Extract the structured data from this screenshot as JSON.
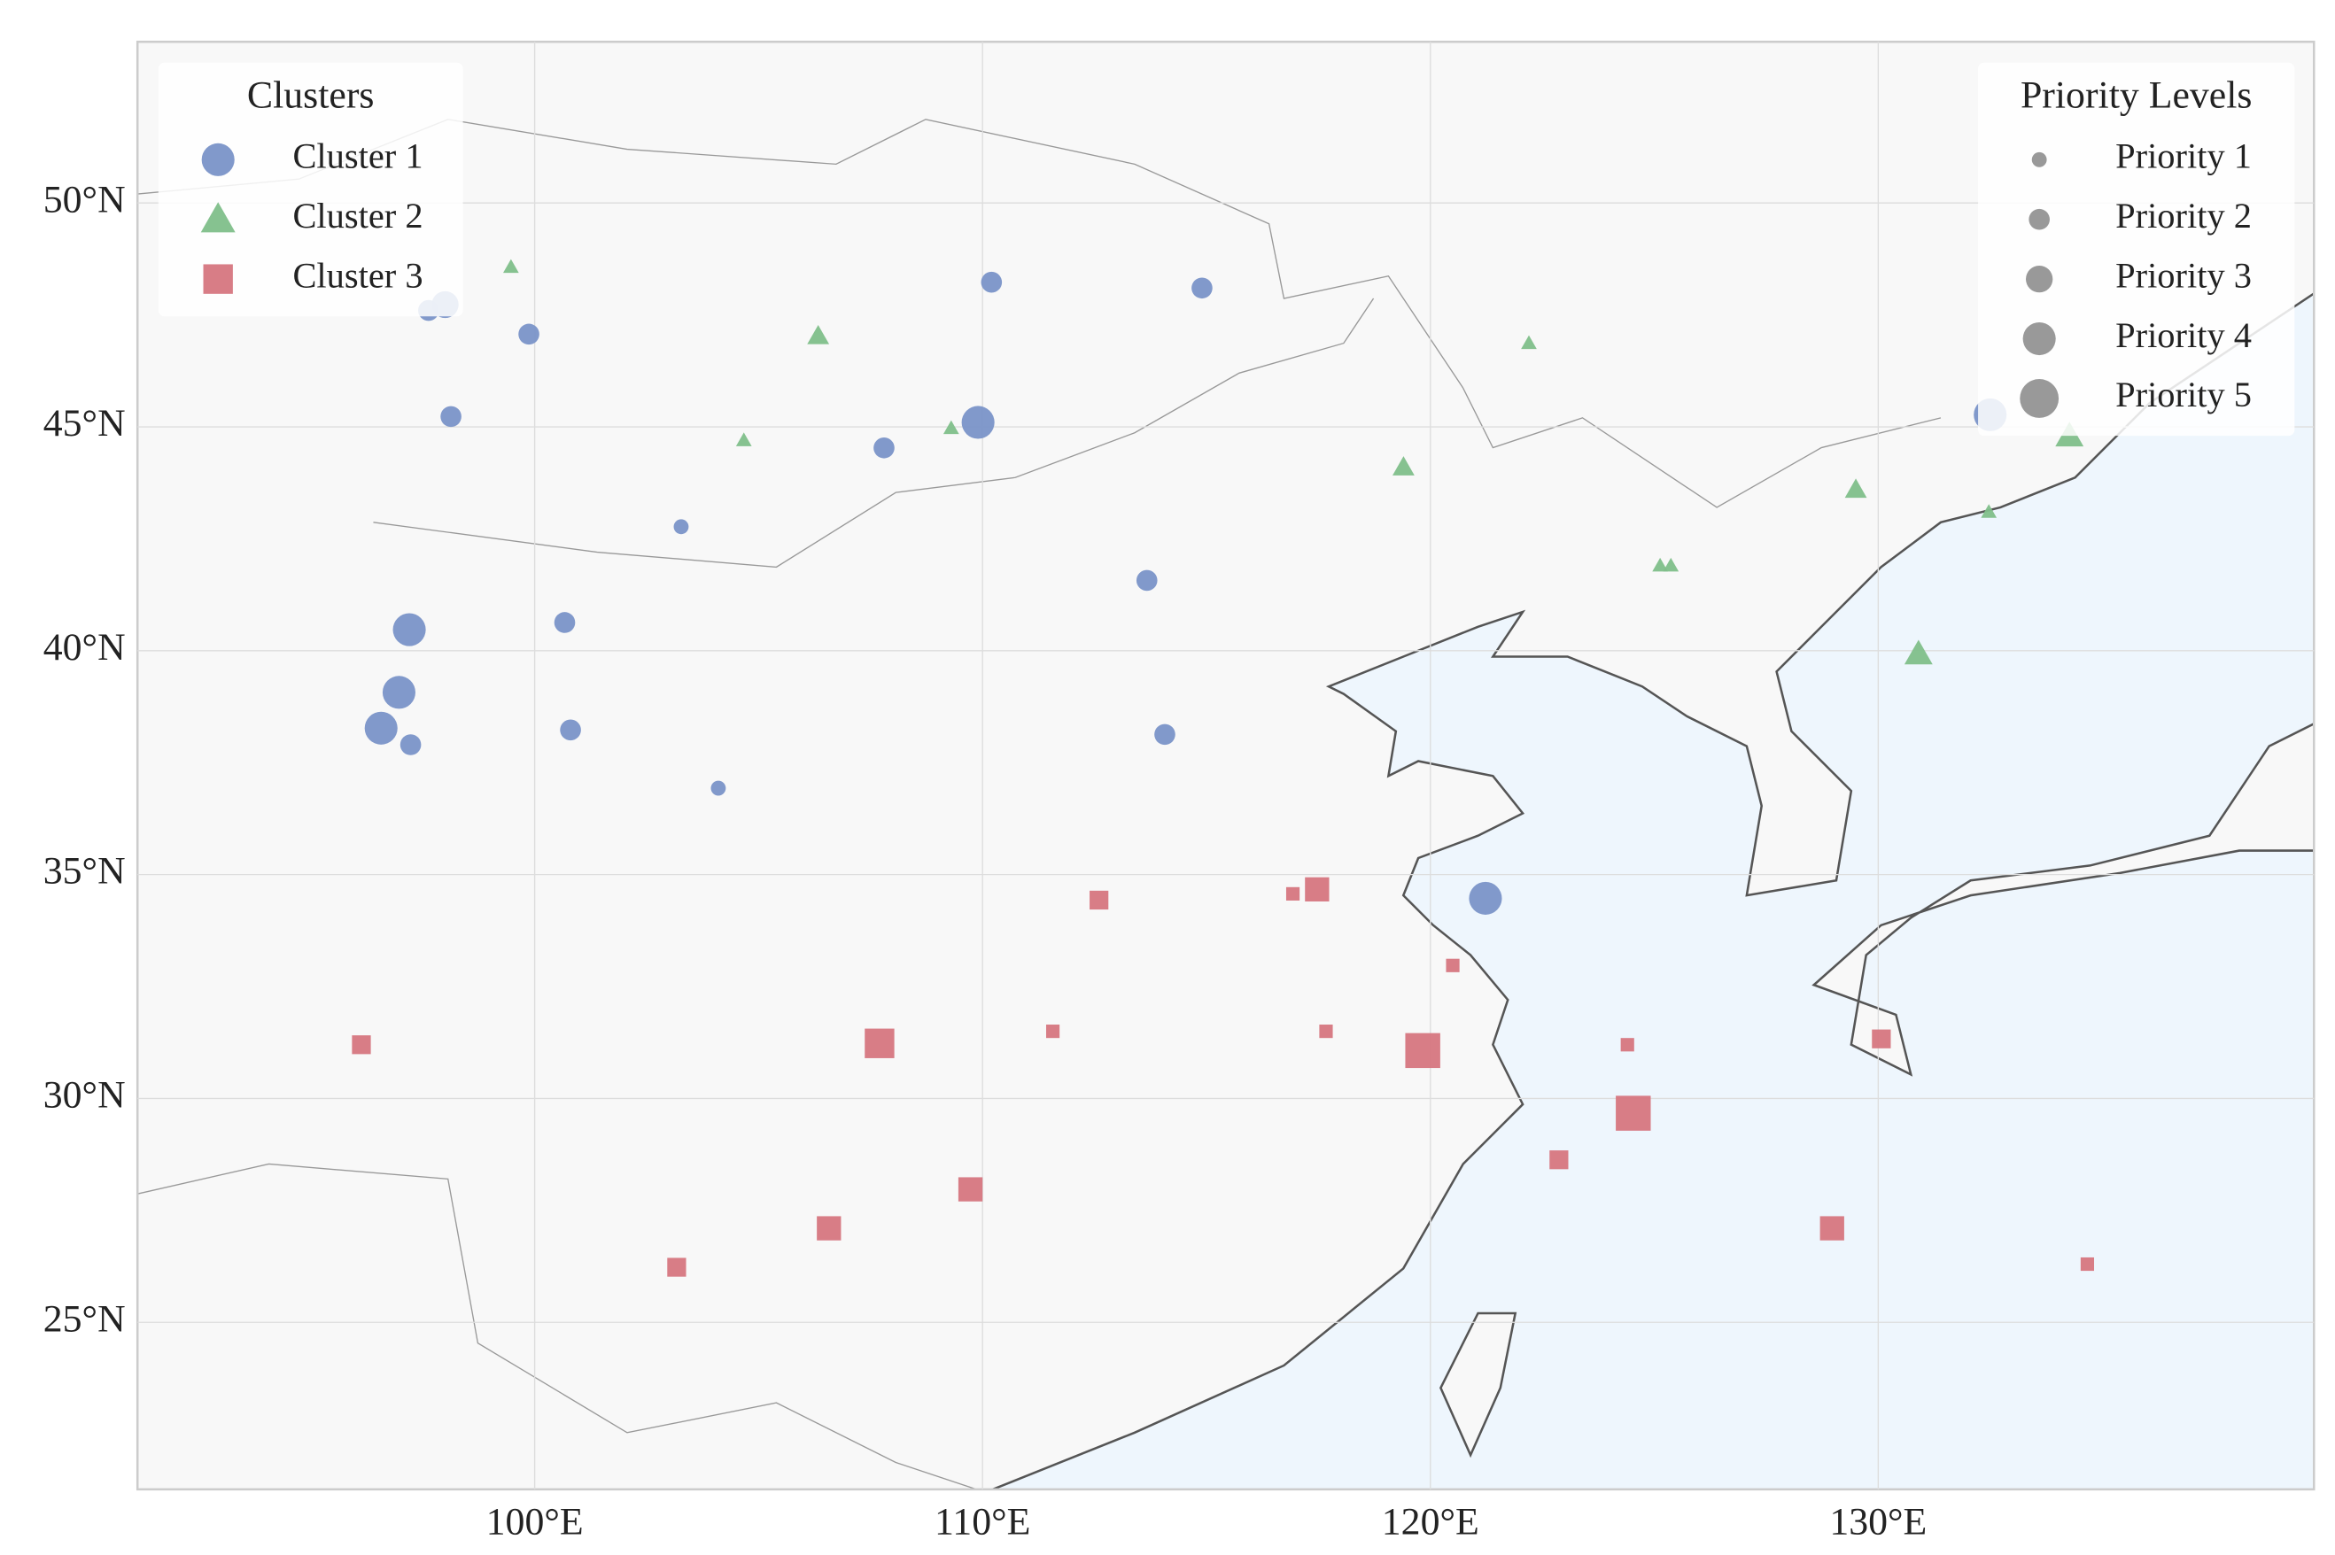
{
  "chart_data": {
    "type": "scatter",
    "xlim": [
      91.13,
      139.73
    ],
    "ylim": [
      21.27,
      53.6
    ],
    "xticks": [
      {
        "value": 100,
        "label": "100°E"
      },
      {
        "value": 110,
        "label": "110°E"
      },
      {
        "value": 120,
        "label": "120°E"
      },
      {
        "value": 130,
        "label": "130°E"
      }
    ],
    "yticks": [
      {
        "value": 25,
        "label": "25°N"
      },
      {
        "value": 30,
        "label": "30°N"
      },
      {
        "value": 35,
        "label": "35°N"
      },
      {
        "value": 40,
        "label": "40°N"
      },
      {
        "value": 45,
        "label": "45°N"
      },
      {
        "value": 50,
        "label": "50°N"
      }
    ],
    "grid": true,
    "legend_title": "Clusters",
    "legend": "upper left",
    "series": [
      {
        "name": "Cluster 1",
        "color": "#7a93c8",
        "marker": "circle",
        "x": [
          97.63,
          98.0,
          99.87,
          98.13,
          110.2,
          114.9,
          107.8,
          109.9,
          103.27,
          113.67,
          100.67,
          97.2,
          96.97,
          96.57,
          97.23,
          100.8,
          104.1,
          114.07,
          121.23,
          132.5
        ],
        "values": [
          47.6,
          47.73,
          47.07,
          45.23,
          48.23,
          48.1,
          44.53,
          45.1,
          42.77,
          41.57,
          40.63,
          40.47,
          39.07,
          38.27,
          37.9,
          38.23,
          36.93,
          38.13,
          34.47,
          45.27
        ],
        "sizes": [
          2,
          3,
          2,
          2,
          2,
          2,
          2,
          4,
          1,
          2,
          2,
          4,
          4,
          4,
          2,
          2,
          1,
          2,
          4,
          4
        ]
      },
      {
        "name": "Cluster 2",
        "color": "#7fbf8a",
        "marker": "triangle",
        "x": [
          99.47,
          106.33,
          122.2,
          104.67,
          109.3,
          119.4,
          134.27,
          129.5,
          132.47,
          125.13,
          125.37,
          130.9
        ],
        "values": [
          48.57,
          47.03,
          46.87,
          44.7,
          44.97,
          44.1,
          44.8,
          43.6,
          43.1,
          41.9,
          41.9,
          39.93
        ],
        "sizes": [
          1,
          2,
          1,
          1,
          1,
          2,
          3,
          2,
          1,
          1,
          1,
          3
        ]
      },
      {
        "name": "Cluster 3",
        "color": "#d6767f",
        "marker": "square",
        "x": [
          96.13,
          107.7,
          112.6,
          111.57,
          116.93,
          117.47,
          117.67,
          120.5,
          119.83,
          124.4,
          124.53,
          122.87,
          130.07,
          109.73,
          106.57,
          103.17,
          128.97,
          134.67
        ],
        "values": [
          31.2,
          31.23,
          34.43,
          31.5,
          34.57,
          34.67,
          31.5,
          32.97,
          31.07,
          31.2,
          29.67,
          28.63,
          31.33,
          27.97,
          27.1,
          26.23,
          27.1,
          26.3
        ],
        "sizes": [
          2,
          4,
          2,
          1,
          1,
          3,
          1,
          1,
          5,
          1,
          5,
          2,
          2,
          3,
          3,
          2,
          3,
          1
        ]
      }
    ],
    "size_legend": {
      "title": "Priority Levels",
      "loc": "upper right",
      "color": "#999999",
      "labels": [
        "Priority 1",
        "Priority 2",
        "Priority 3",
        "Priority 4",
        "Priority 5"
      ],
      "values": [
        1,
        2,
        3,
        4,
        5
      ]
    }
  }
}
